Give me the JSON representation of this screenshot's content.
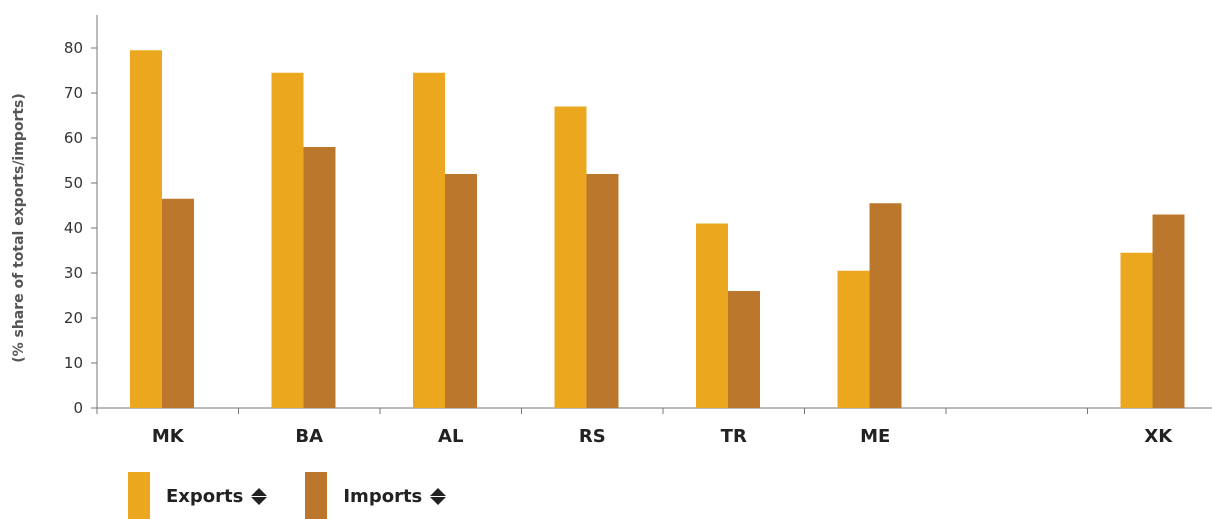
{
  "chart_data": {
    "type": "bar",
    "title": "",
    "xlabel": "",
    "ylabel": "(% share of total exports/imports)",
    "ylim": [
      0,
      80
    ],
    "yticks": [
      0,
      10,
      20,
      30,
      40,
      50,
      60,
      70,
      80
    ],
    "grid": false,
    "legend_position": "bottom-left",
    "categories": [
      "MK",
      "BA",
      "AL",
      "RS",
      "TR",
      "ME",
      "",
      "XK"
    ],
    "series": [
      {
        "name": "Exports",
        "color": "#EBA81F",
        "values": [
          79.5,
          74.5,
          74.5,
          67,
          41,
          30.5,
          null,
          34.5
        ]
      },
      {
        "name": "Imports",
        "color": "#BB782C",
        "values": [
          46.5,
          58,
          52,
          52,
          26,
          45.5,
          null,
          43
        ]
      }
    ]
  },
  "legend": {
    "exports_label": "Exports",
    "imports_label": "Imports",
    "sort_icon": "sort-icon"
  }
}
